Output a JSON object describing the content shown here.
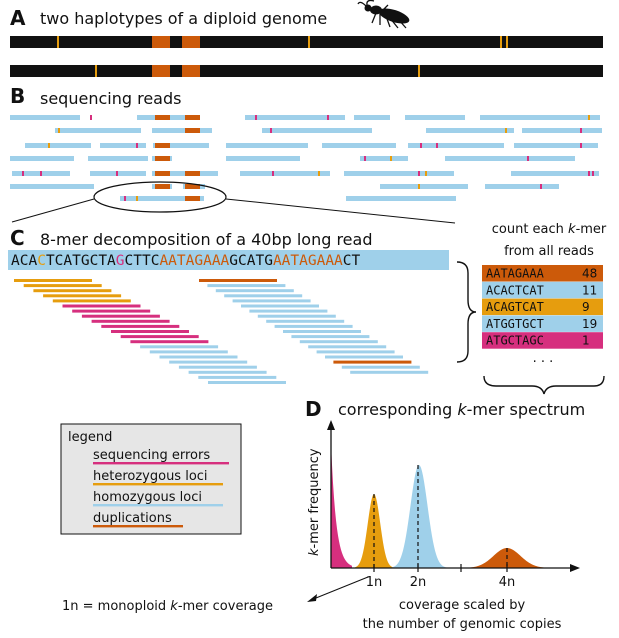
{
  "colors": {
    "chromosome": "#111111",
    "error": "#d62f7e",
    "heterozygous": "#e69d0e",
    "homozygous": "#9fd0ea",
    "duplication": "#cc5a0a",
    "legend_bg": "#e6e6e6"
  },
  "icon": "insect-icon",
  "panel_a": {
    "letter": "A",
    "title": "two haplotypes of a diploid genome"
  },
  "panel_b": {
    "letter": "B",
    "title": "sequencing reads"
  },
  "panel_c": {
    "letter": "C",
    "title": "8-mer decomposition of a 40bp long read",
    "read": [
      {
        "text": "ACA",
        "color": "#111111"
      },
      {
        "text": "C",
        "color": "#e69d0e"
      },
      {
        "text": "TCATGCTA",
        "color": "#111111"
      },
      {
        "text": "G",
        "color": "#d62f7e"
      },
      {
        "text": "CTTC",
        "color": "#111111"
      },
      {
        "text": "AATAGAAA",
        "color": "#cc5a0a"
      },
      {
        "text": "GCATG",
        "color": "#111111"
      },
      {
        "text": "AATAGAAA",
        "color": "#cc5a0a"
      },
      {
        "text": "CT",
        "color": "#111111"
      }
    ],
    "count_caption": {
      "line1_pre": "count each ",
      "line1_k": "k",
      "line1_post": "-mer",
      "line2": "from all reads"
    },
    "kmer_table": [
      {
        "kmer": "AATAGAAA",
        "count": "48",
        "category": "duplication"
      },
      {
        "kmer": "ACACTCAT",
        "count": "11",
        "category": "homozygous"
      },
      {
        "kmer": "ACAGTCAT",
        "count": "9",
        "category": "heterozygous"
      },
      {
        "kmer": "ATGGTGCT",
        "count": "19",
        "category": "homozygous"
      },
      {
        "kmer": "ATGCTAGC",
        "count": "1",
        "category": "error"
      }
    ],
    "table_ellipsis": ". . ."
  },
  "panel_d": {
    "letter": "D",
    "title_pre": "corresponding ",
    "title_k": "k",
    "title_post": "-mer spectrum",
    "ylabel_k": "k",
    "ylabel_post": "-mer frequency",
    "ticks": [
      "1n",
      "2n",
      "4n"
    ],
    "xlabel_line1": "coverage scaled by",
    "xlabel_line2": "the number of genomic copies",
    "note_pre": "1n = monoploid ",
    "note_k": "k",
    "note_post": "-mer coverage"
  },
  "legend": {
    "title": "legend",
    "items": [
      {
        "label": "sequencing errors",
        "category": "error"
      },
      {
        "label": "heterozygous loci",
        "category": "heterozygous"
      },
      {
        "label": "homozygous loci",
        "category": "homozygous"
      },
      {
        "label": "duplications",
        "category": "duplication"
      }
    ]
  }
}
